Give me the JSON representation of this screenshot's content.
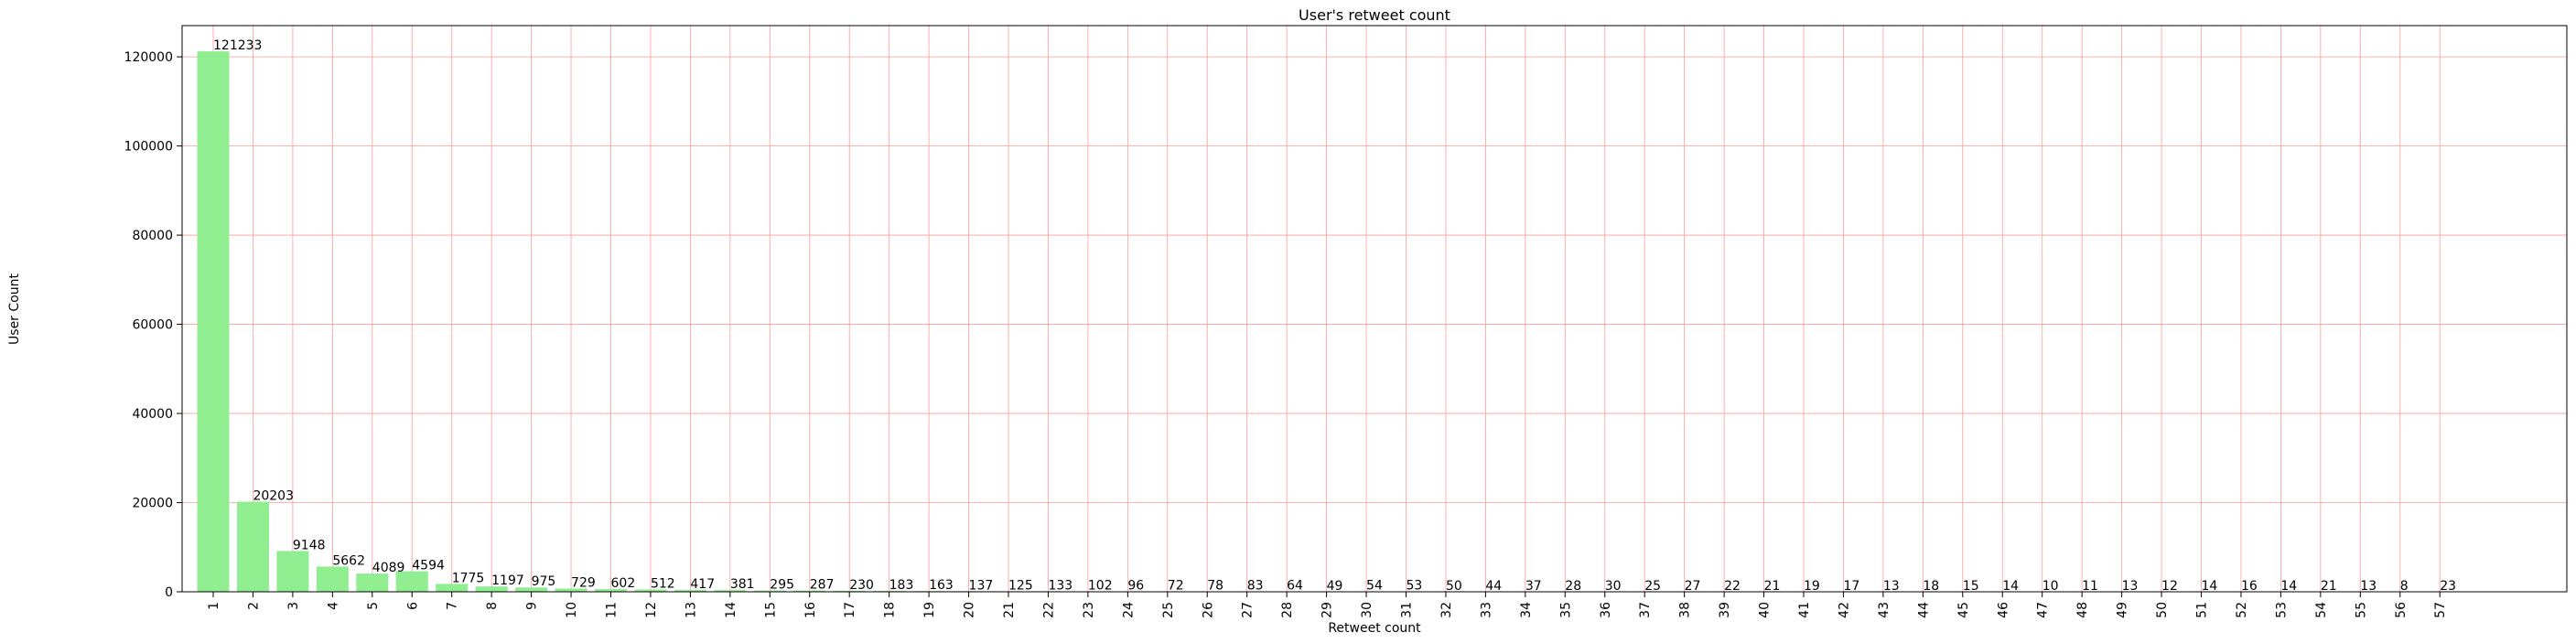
{
  "chart_data": {
    "type": "bar",
    "title": "User's retweet count",
    "xlabel": "Retweet count",
    "ylabel": "User Count",
    "categories": [
      "1",
      "2",
      "3",
      "4",
      "5",
      "6",
      "7",
      "8",
      "9",
      "10",
      "11",
      "12",
      "13",
      "14",
      "15",
      "16",
      "17",
      "18",
      "19",
      "20",
      "21",
      "22",
      "23",
      "24",
      "25",
      "26",
      "27",
      "28",
      "29",
      "30",
      "31",
      "32",
      "33",
      "34",
      "35",
      "36",
      "37",
      "38",
      "39",
      "40",
      "41",
      "42",
      "43",
      "44",
      "45",
      "46",
      "47",
      "48",
      "49",
      "50",
      "51",
      "52",
      "53",
      "54",
      "55",
      "56",
      "57"
    ],
    "values": [
      121233,
      20203,
      9148,
      5662,
      4089,
      4594,
      1775,
      1197,
      975,
      729,
      602,
      512,
      417,
      381,
      295,
      287,
      230,
      183,
      163,
      137,
      125,
      133,
      102,
      96,
      72,
      78,
      83,
      64,
      49,
      54,
      53,
      50,
      44,
      37,
      28,
      30,
      25,
      27,
      22,
      21,
      19,
      17,
      13,
      18,
      15,
      14,
      10,
      11,
      13,
      12,
      14,
      16,
      14,
      21,
      13,
      8,
      23
    ],
    "value_labels": [
      "121233",
      "20203",
      "9148",
      "5662",
      "4089",
      "4594",
      "1775",
      "1197",
      "975",
      "729",
      "602",
      "512",
      "417",
      "381",
      "295",
      "287",
      "230",
      "183",
      "163",
      "137",
      "125",
      "133",
      "102",
      "96",
      "72",
      "78",
      "83",
      "64",
      "49",
      "54",
      "53",
      "50",
      "44",
      "37",
      "28",
      "30",
      "25",
      "27",
      "22",
      "21",
      "19",
      "17",
      "13",
      "18",
      "15",
      "14",
      "10",
      "11",
      "13",
      "12",
      "14",
      "16",
      "14",
      "21",
      "13",
      "8",
      "23"
    ],
    "ylim": [
      0,
      127000
    ],
    "yticks": [
      0,
      20000,
      40000,
      60000,
      80000,
      100000,
      120000
    ],
    "ytick_labels": [
      "0",
      "20000",
      "40000",
      "60000",
      "80000",
      "100000",
      "120000"
    ],
    "grid": true,
    "colors": {
      "bar": "#90EE90",
      "grid": "#ff9999",
      "axis": "#000000"
    }
  }
}
